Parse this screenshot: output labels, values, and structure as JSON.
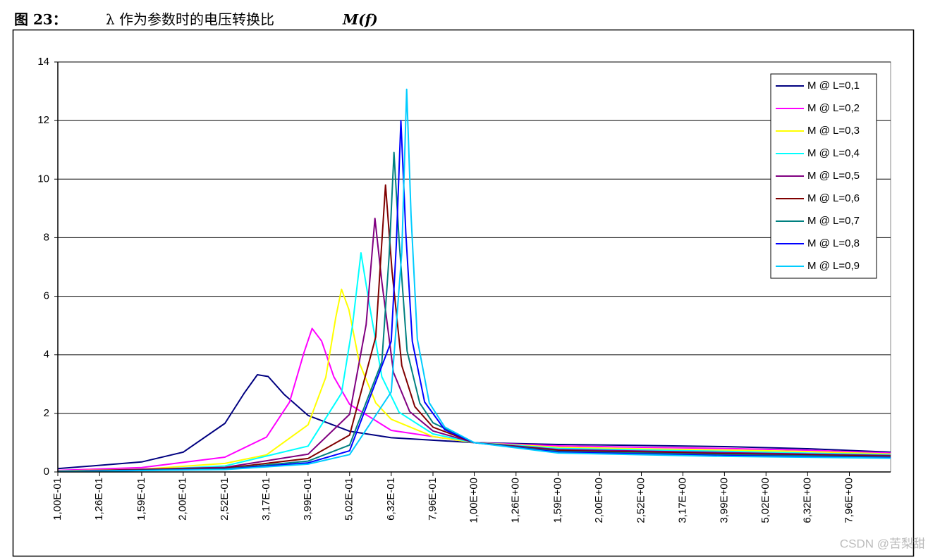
{
  "chart_data": {
    "type": "line",
    "figure_label": "图 23：",
    "title": "λ 作为参数时的电压转换比",
    "title_symbol": "M(f)",
    "watermark": "CSDN @苦梨甜",
    "xscale": "log",
    "xlim": [
      0.1,
      10
    ],
    "xticks": [
      {
        "value": 0.1,
        "label": "1,00E-01"
      },
      {
        "value": 0.126,
        "label": "1,26E-01"
      },
      {
        "value": 0.159,
        "label": "1,59E-01"
      },
      {
        "value": 0.2,
        "label": "2,00E-01"
      },
      {
        "value": 0.252,
        "label": "2,52E-01"
      },
      {
        "value": 0.317,
        "label": "3,17E-01"
      },
      {
        "value": 0.399,
        "label": "3,99E-01"
      },
      {
        "value": 0.502,
        "label": "5,02E-01"
      },
      {
        "value": 0.632,
        "label": "6,32E-01"
      },
      {
        "value": 0.796,
        "label": "7,96E-01"
      },
      {
        "value": 1,
        "label": "1,00E+00"
      },
      {
        "value": 1.26,
        "label": "1,26E+00"
      },
      {
        "value": 1.59,
        "label": "1,59E+00"
      },
      {
        "value": 2,
        "label": "2,00E+00"
      },
      {
        "value": 2.52,
        "label": "2,52E+00"
      },
      {
        "value": 3.17,
        "label": "3,17E+00"
      },
      {
        "value": 3.99,
        "label": "3,99E+00"
      },
      {
        "value": 5.02,
        "label": "5,02E+00"
      },
      {
        "value": 6.32,
        "label": "6,32E+00"
      },
      {
        "value": 7.96,
        "label": "7,96E+00"
      }
    ],
    "ylim": [
      0,
      14
    ],
    "yticks": [
      0,
      2,
      4,
      6,
      8,
      10,
      12,
      14
    ],
    "grid": true,
    "legend": "upper right",
    "series": [
      {
        "name": "M @ L=0,1",
        "color": "#000080",
        "x": [
          0.1,
          0.159,
          0.2,
          0.252,
          0.28,
          0.3015,
          0.32,
          0.35,
          0.399,
          0.502,
          0.632,
          1,
          1.59,
          2.52,
          3.99,
          6.32,
          10
        ],
        "values": [
          0.112,
          0.342,
          0.676,
          1.66,
          2.68,
          3.32,
          3.26,
          2.64,
          1.93,
          1.39,
          1.17,
          1,
          0.939,
          0.905,
          0.865,
          0.794,
          0.676
        ]
      },
      {
        "name": "M @ L=0,2",
        "color": "#ff00ff",
        "x": [
          0.1,
          0.159,
          0.252,
          0.317,
          0.36,
          0.39,
          0.408,
          0.43,
          0.46,
          0.502,
          0.632,
          1,
          1.59,
          2.52,
          3.99,
          6.32,
          10
        ],
        "values": [
          0.053,
          0.148,
          0.504,
          1.19,
          2.38,
          4.07,
          4.9,
          4.47,
          3.25,
          2.31,
          1.42,
          1,
          0.889,
          0.842,
          0.803,
          0.744,
          0.644
        ]
      },
      {
        "name": "M @ L=0,3",
        "color": "#ffff00",
        "x": [
          0.1,
          0.159,
          0.252,
          0.317,
          0.399,
          0.44,
          0.465,
          0.48,
          0.5,
          0.53,
          0.58,
          0.632,
          0.796,
          1,
          1.59,
          2.52,
          3.99,
          6.32,
          10
        ],
        "values": [
          0.035,
          0.094,
          0.29,
          0.585,
          1.61,
          3.23,
          5.27,
          6.24,
          5.55,
          3.72,
          2.36,
          1.8,
          1.21,
          1,
          0.844,
          0.787,
          0.749,
          0.698,
          0.613
        ]
      },
      {
        "name": "M @ L=0,4",
        "color": "#00ffff",
        "x": [
          0.1,
          0.159,
          0.252,
          0.399,
          0.48,
          0.51,
          0.5345,
          0.56,
          0.6,
          0.66,
          0.796,
          1,
          1.59,
          3.99,
          10
        ],
        "values": [
          0.026,
          0.069,
          0.204,
          0.884,
          2.69,
          4.99,
          7.48,
          5.72,
          3.25,
          2.04,
          1.3,
          1,
          0.803,
          0.702,
          0.584
        ]
      },
      {
        "name": "M @ L=0,5",
        "color": "#800080",
        "x": [
          0.1,
          0.252,
          0.399,
          0.502,
          0.55,
          0.5774,
          0.6,
          0.64,
          0.7,
          0.796,
          1,
          1.59,
          3.99,
          10
        ],
        "values": [
          0.0206,
          0.157,
          0.605,
          1.97,
          5.03,
          8.66,
          6.49,
          3.4,
          2.06,
          1.4,
          1,
          0.766,
          0.66,
          0.558
        ]
      },
      {
        "name": "M @ L=0,6",
        "color": "#800000",
        "x": [
          0.1,
          0.252,
          0.399,
          0.502,
          0.58,
          0.6124,
          0.635,
          0.67,
          0.72,
          0.796,
          1,
          1.59,
          3.99,
          10
        ],
        "values": [
          0.0171,
          0.127,
          0.459,
          1.26,
          4.61,
          9.8,
          6.84,
          3.63,
          2.23,
          1.53,
          1,
          0.732,
          0.623,
          0.533
        ]
      },
      {
        "name": "M @ L=0,7",
        "color": "#008080",
        "x": [
          0.1,
          0.252,
          0.399,
          0.502,
          0.6,
          0.625,
          0.6417,
          0.66,
          0.69,
          0.74,
          0.796,
          1,
          1.59,
          3.99,
          10
        ],
        "values": [
          0.0146,
          0.107,
          0.37,
          0.918,
          3.76,
          7.45,
          10.91,
          7.93,
          4.13,
          2.35,
          1.68,
          1,
          0.701,
          0.589,
          0.51
        ]
      },
      {
        "name": "M @ L=0,8",
        "color": "#0000ff",
        "x": [
          0.1,
          0.252,
          0.399,
          0.502,
          0.632,
          0.65,
          0.6667,
          0.685,
          0.71,
          0.76,
          0.85,
          1,
          1.59,
          3.99,
          10
        ],
        "values": [
          0.0128,
          0.0926,
          0.31,
          0.723,
          4.46,
          7.76,
          12,
          8.16,
          4.46,
          2.39,
          1.44,
          1,
          0.673,
          0.559,
          0.488
        ]
      },
      {
        "name": "M @ L=0,9",
        "color": "#00ccff",
        "x": [
          0.1,
          0.252,
          0.399,
          0.502,
          0.632,
          0.67,
          0.6882,
          0.705,
          0.73,
          0.78,
          0.85,
          1,
          1.59,
          3.99,
          10
        ],
        "values": [
          0.0114,
          0.0814,
          0.266,
          0.595,
          2.73,
          7.5,
          13.07,
          8.77,
          4.54,
          2.36,
          1.53,
          1,
          0.646,
          0.532,
          0.469
        ]
      }
    ]
  }
}
